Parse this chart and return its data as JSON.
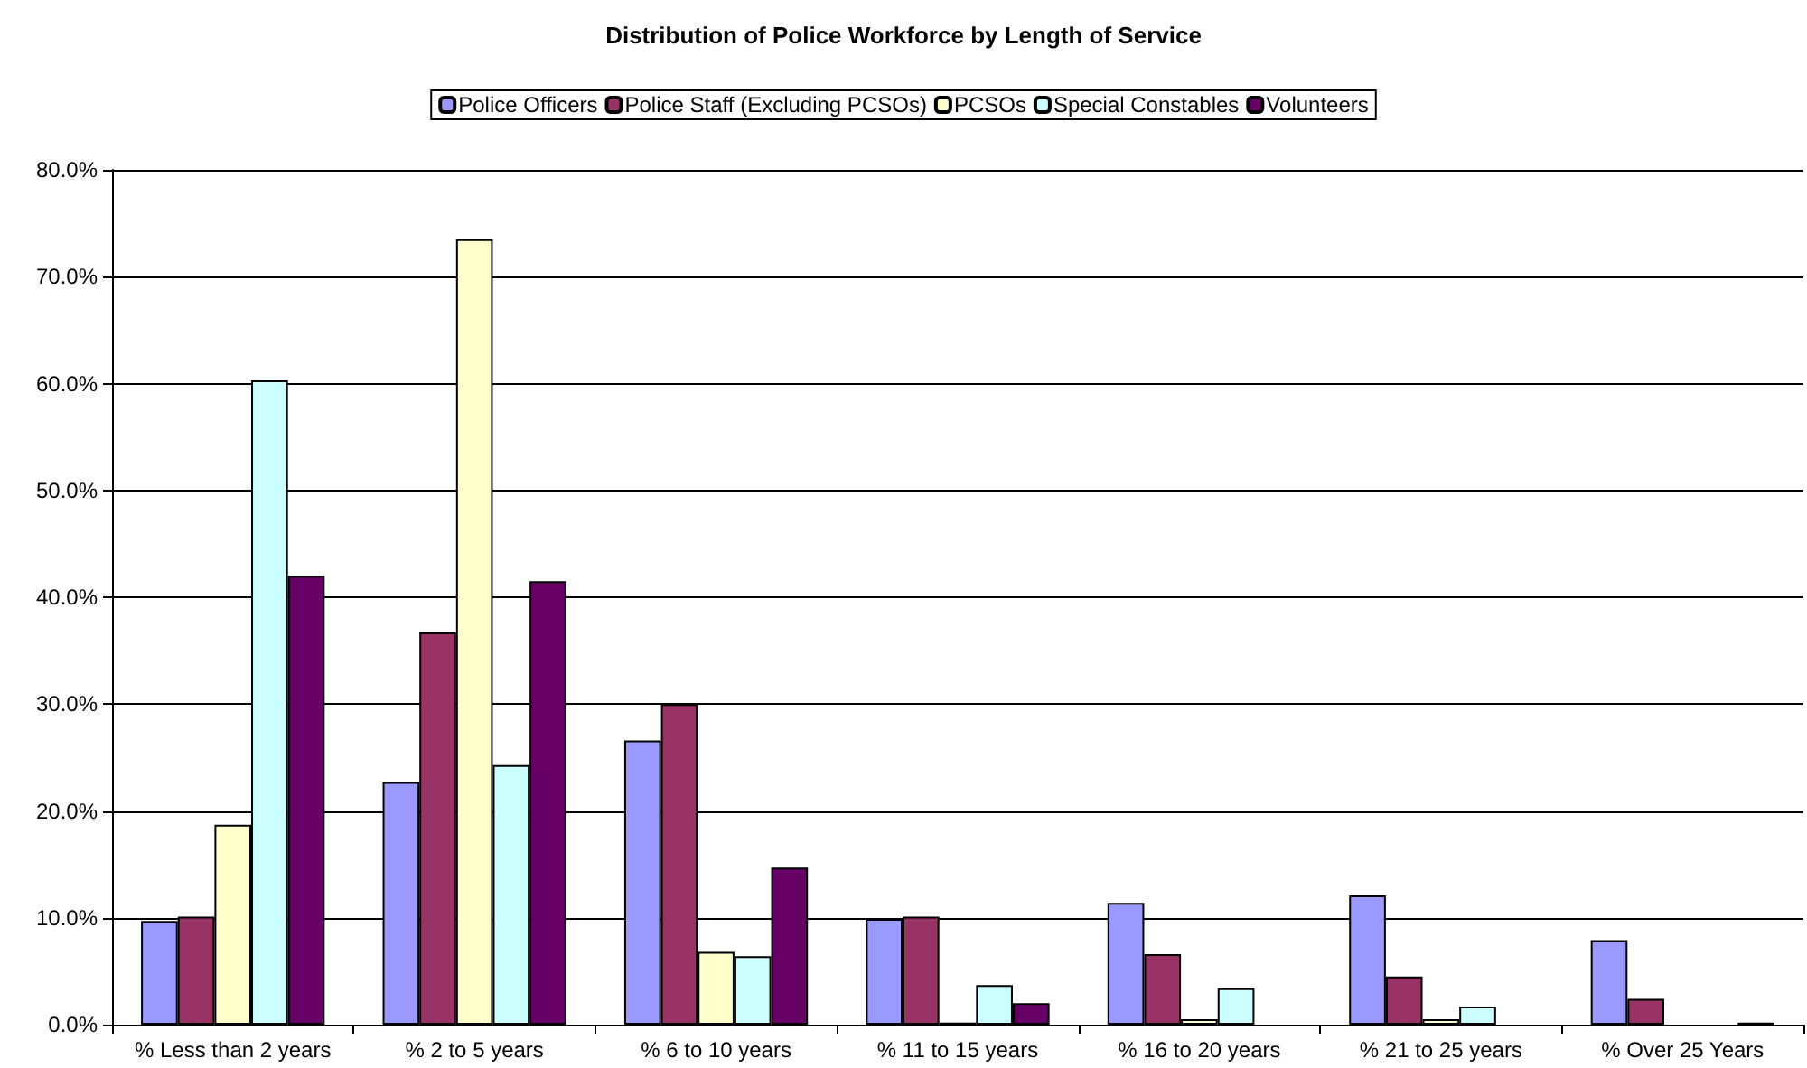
{
  "chart_data": {
    "type": "bar",
    "title": "Distribution of Police Workforce by Length of Service",
    "categories": [
      "% Less than 2 years",
      "% 2 to 5 years",
      "% 6 to 10 years",
      "% 11 to 15 years",
      "% 16 to 20 years",
      "% 21 to 25 years",
      "% Over 25 Years"
    ],
    "series": [
      {
        "name": "Police Officers",
        "color": "#9999ff",
        "values": [
          9.7,
          22.7,
          26.6,
          9.9,
          11.4,
          12.1,
          7.9
        ]
      },
      {
        "name": "Police Staff (Excluding PCSOs)",
        "color": "#993366",
        "values": [
          10.1,
          36.7,
          30.0,
          10.1,
          6.6,
          4.5,
          2.4
        ]
      },
      {
        "name": "PCSOs",
        "color": "#ffffcc",
        "values": [
          18.7,
          73.5,
          6.8,
          0.2,
          0.5,
          0.5,
          0
        ]
      },
      {
        "name": "Special Constables",
        "color": "#ccffff",
        "values": [
          60.3,
          24.3,
          6.4,
          3.7,
          3.4,
          1.7,
          0
        ]
      },
      {
        "name": "Volunteers",
        "color": "#660066",
        "values": [
          42.0,
          41.5,
          14.7,
          2.0,
          0,
          0,
          0.2
        ]
      }
    ],
    "ylim": [
      0,
      80
    ],
    "yticks": [
      {
        "value": 0,
        "label": "0.0%"
      },
      {
        "value": 10,
        "label": "10.0%"
      },
      {
        "value": 20,
        "label": "20.0%"
      },
      {
        "value": 30,
        "label": "30.0%"
      },
      {
        "value": 40,
        "label": "40.0%"
      },
      {
        "value": 50,
        "label": "50.0%"
      },
      {
        "value": 60,
        "label": "60.0%"
      },
      {
        "value": 70,
        "label": "70.0%"
      },
      {
        "value": 80,
        "label": "80.0%"
      }
    ],
    "grid": "y",
    "legend": "top"
  }
}
